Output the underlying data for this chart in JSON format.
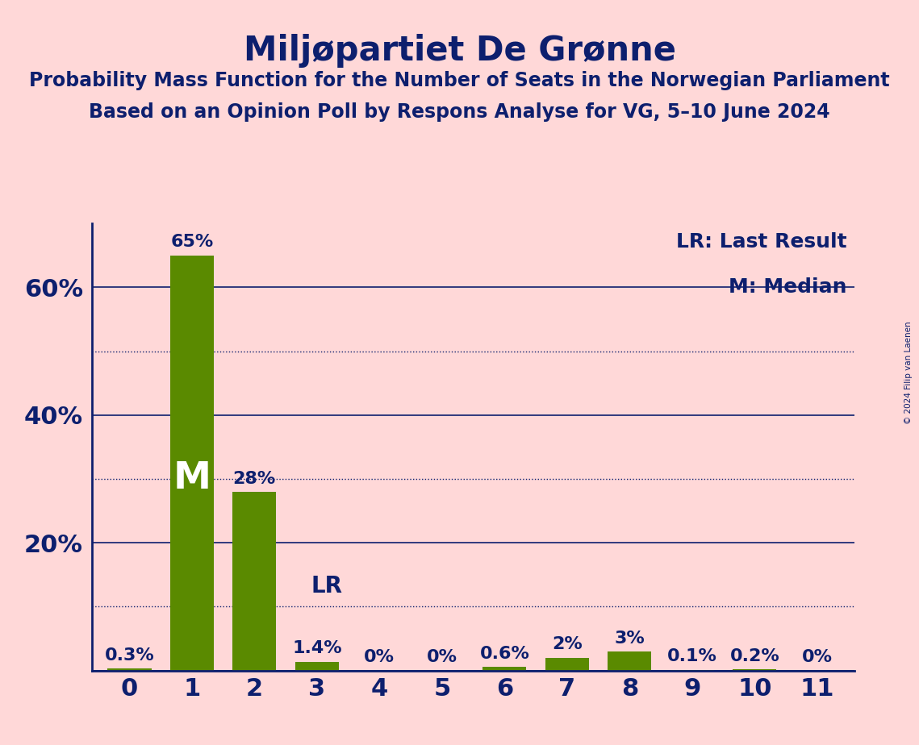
{
  "title": "Miljøpartiet De Grønne",
  "subtitle1": "Probability Mass Function for the Number of Seats in the Norwegian Parliament",
  "subtitle2": "Based on an Opinion Poll by Respons Analyse for VG, 5–10 June 2024",
  "copyright": "© 2024 Filip van Laenen",
  "categories": [
    0,
    1,
    2,
    3,
    4,
    5,
    6,
    7,
    8,
    9,
    10,
    11
  ],
  "values": [
    0.3,
    65,
    28,
    1.4,
    0,
    0,
    0.6,
    2,
    3,
    0.1,
    0.2,
    0
  ],
  "bar_color": "#5a8a00",
  "background_color": "#ffd8d8",
  "title_color": "#0d1f6e",
  "text_color": "#0d1f6e",
  "median_seat": 1,
  "lr_seat": 3,
  "ylim": [
    0,
    70
  ],
  "yticks_solid": [
    20,
    40,
    60
  ],
  "yticks_dotted": [
    10,
    30,
    50
  ],
  "legend_text": [
    "LR: Last Result",
    "M: Median"
  ],
  "value_labels": [
    "0.3%",
    "65%",
    "28%",
    "1.4%",
    "0%",
    "0%",
    "0.6%",
    "2%",
    "3%",
    "0.1%",
    "0.2%",
    "0%"
  ]
}
